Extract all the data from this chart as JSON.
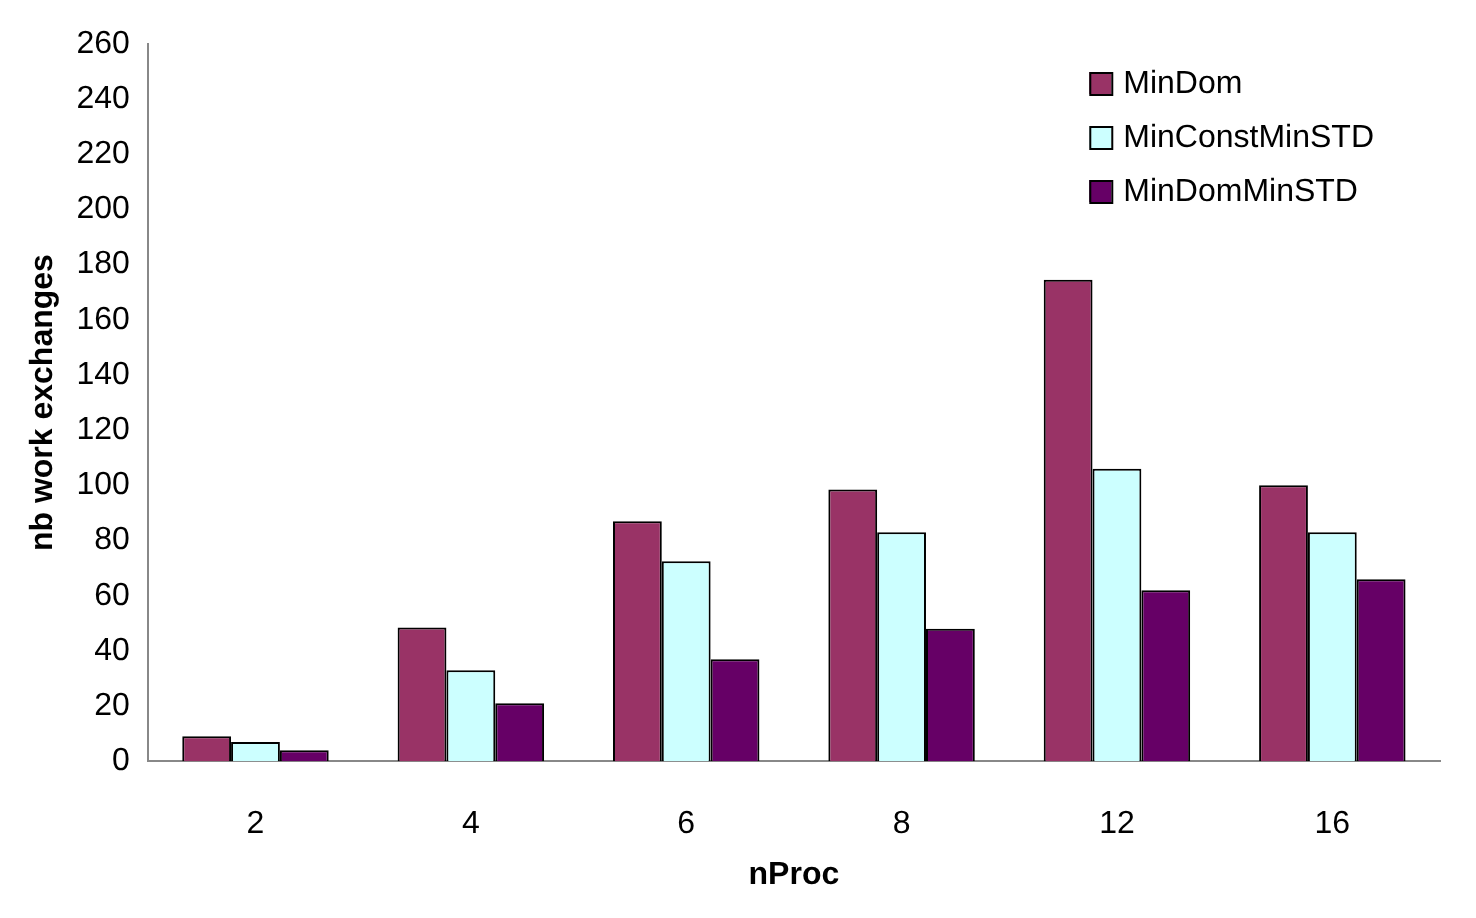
{
  "chart_data": {
    "type": "bar",
    "xlabel": "nProc",
    "ylabel": "nb work exchanges",
    "categories": [
      "2",
      "4",
      "6",
      "8",
      "12",
      "16"
    ],
    "series": [
      {
        "name": "MinDom",
        "color": "#993366",
        "values": [
          9,
          48.5,
          87,
          98.5,
          174.5,
          100
        ]
      },
      {
        "name": "MinConstMinSTD",
        "color": "#ccffff",
        "values": [
          7,
          33,
          72.5,
          83,
          106,
          83
        ]
      },
      {
        "name": "MinDomMinSTD",
        "color": "#660066",
        "values": [
          4,
          21,
          37,
          48,
          62,
          66
        ]
      }
    ],
    "ylim": [
      0,
      260
    ],
    "yticks": [
      0,
      20,
      40,
      60,
      80,
      100,
      120,
      140,
      160,
      180,
      200,
      220,
      240,
      260
    ],
    "grid": false,
    "legend": "top right"
  }
}
